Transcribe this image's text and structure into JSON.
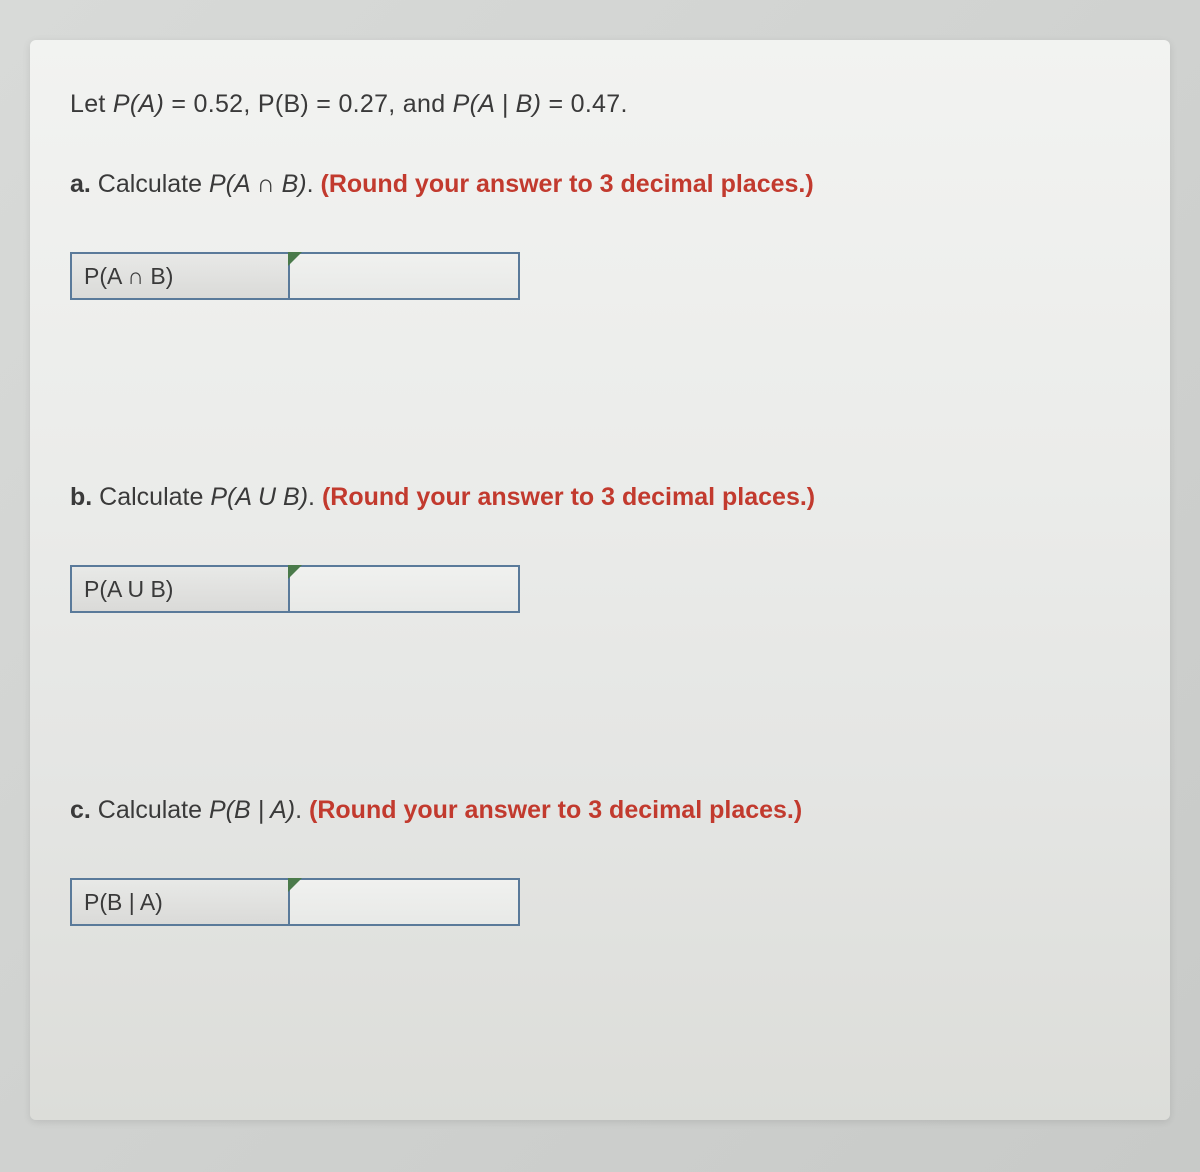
{
  "colors": {
    "page_bg_start": "#d8dad8",
    "page_bg_end": "#c8cac8",
    "panel_bg_start": "#f2f3f1",
    "panel_bg_end": "#dcddd9",
    "text_color": "#3a3a3a",
    "hint_color": "#c23a2e",
    "cell_border": "#5a7a9a",
    "cell_bg_start": "#e8e9e7",
    "cell_bg_end": "#dadad8",
    "corner_marker": "#4a7a4a"
  },
  "intro": {
    "prefix": "Let ",
    "pa_expr": "P(A)",
    "pa_eq": " = 0.52, ",
    "pb_expr": "P(B)",
    "pb_eq": " = 0.27, and ",
    "pab_expr": "P(A | B)",
    "pab_eq": " = 0.47."
  },
  "questions": [
    {
      "part": "a.",
      "lead": " Calculate ",
      "expr": "P(A ∩ B)",
      "period": ". ",
      "hint": "(Round your answer to 3 decimal places.)",
      "label": "P(A ∩ B)",
      "value": ""
    },
    {
      "part": "b.",
      "lead": " Calculate ",
      "expr": "P(A U B)",
      "period": ". ",
      "hint": "(Round your answer to 3 decimal places.)",
      "label": "P(A U B)",
      "value": ""
    },
    {
      "part": "c.",
      "lead": " Calculate ",
      "expr": "P(B | A)",
      "period": ". ",
      "hint": "(Round your answer to 3 decimal places.)",
      "label": "P(B | A)",
      "value": ""
    }
  ]
}
